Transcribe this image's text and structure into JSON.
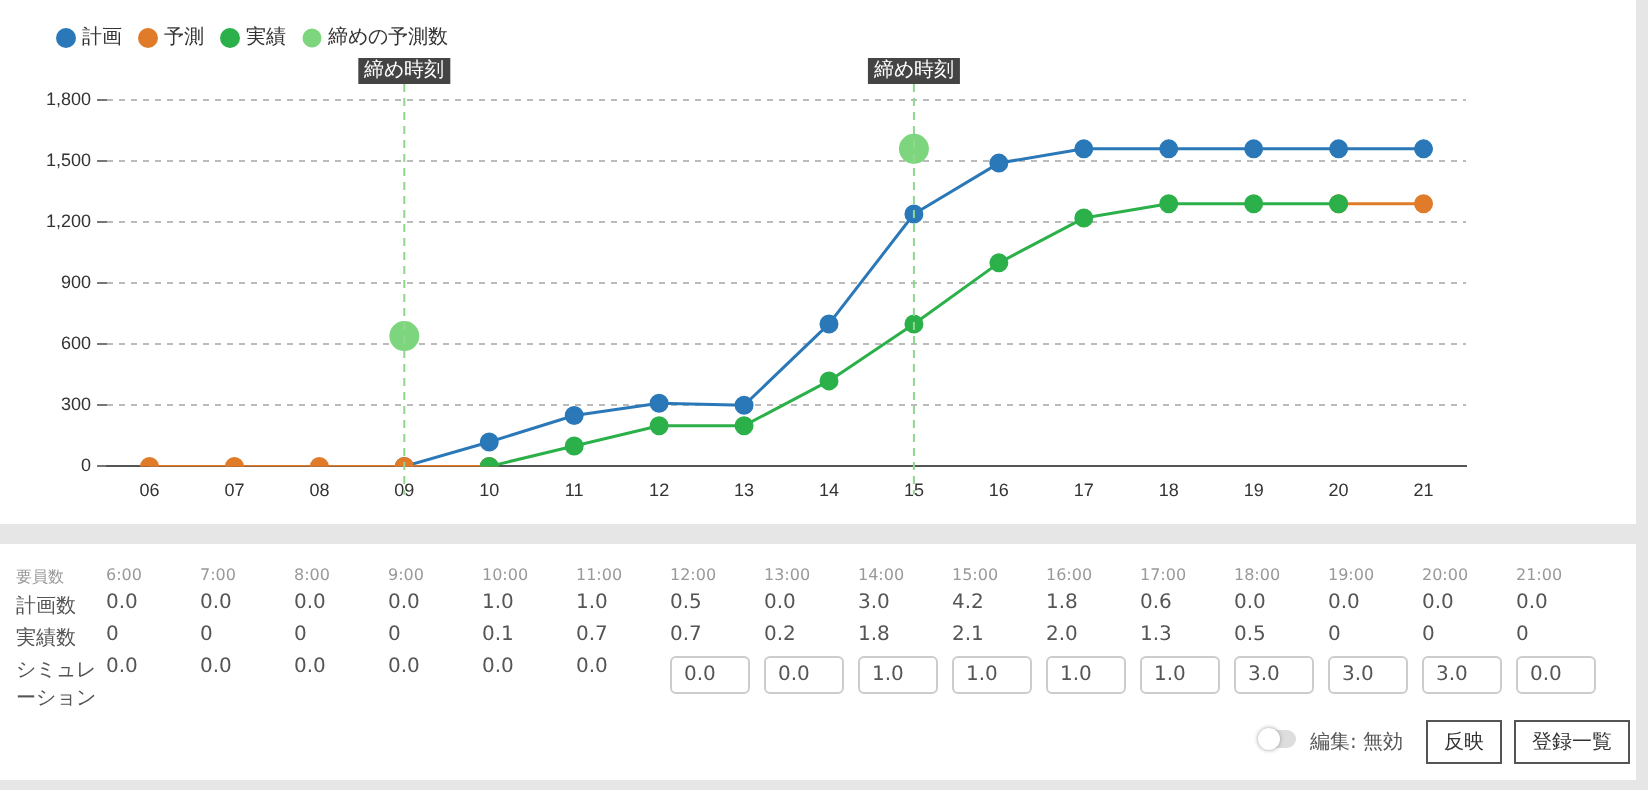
{
  "chart_data": [
    {
      "type": "line",
      "categories": [
        "06",
        "07",
        "08",
        "09",
        "10",
        "11",
        "12",
        "13",
        "14",
        "15",
        "16",
        "17",
        "18",
        "19",
        "20",
        "21"
      ],
      "series": [
        {
          "name": "計画",
          "type": "line",
          "color": "#2a78b8",
          "values": [
            null,
            null,
            null,
            0,
            120,
            250,
            310,
            300,
            700,
            1240,
            1490,
            1560,
            1560,
            1560,
            1560,
            1560
          ]
        },
        {
          "name": "予測",
          "type": "line",
          "color": "#e07b2a",
          "values": [
            0,
            0,
            0,
            0,
            0,
            null,
            null,
            null,
            null,
            null,
            null,
            null,
            null,
            null,
            1290,
            1290
          ]
        },
        {
          "name": "実績",
          "type": "line",
          "color": "#2bb04a",
          "values": [
            null,
            null,
            null,
            null,
            0,
            100,
            200,
            200,
            420,
            700,
            1000,
            1220,
            1290,
            1290,
            1290,
            null
          ]
        },
        {
          "name": "締めの予測数",
          "type": "scatter",
          "color": "#7dd67d",
          "x": [
            "09",
            "15"
          ],
          "values": [
            640,
            1560
          ]
        }
      ],
      "ylim": [
        0,
        1800
      ],
      "yticks": [
        0,
        300,
        600,
        900,
        {
          "value": 1200,
          "label": "1,200"
        },
        {
          "value": 1500,
          "label": "1,500"
        },
        {
          "value": 1800,
          "label": "1,800"
        }
      ],
      "grid": "y",
      "legend": "top left",
      "marker": "circle",
      "ref_lines": [
        {
          "axis": "x",
          "value": "09",
          "label": "締め時刻",
          "color": "#8fd68f",
          "line_style": "dashed"
        },
        {
          "axis": "x",
          "value": "15",
          "label": "締め時刻",
          "color": "#8fd68f",
          "line_style": "dashed"
        }
      ]
    },
    {
      "type": "heatmap",
      "categories": [
        "6:00",
        "7:00",
        "8:00",
        "9:00",
        "10:00",
        "11:00",
        "12:00",
        "13:00",
        "14:00",
        "15:00",
        "16:00",
        "17:00",
        "18:00",
        "19:00",
        "20:00",
        "21:00"
      ],
      "y_categories": [
        "計画数",
        "実績数",
        "シミュレーション"
      ],
      "cells": [
        [
          0,
          0,
          0,
          0,
          1,
          1,
          0.5,
          0,
          3,
          4.2,
          1.8,
          0.6,
          0,
          0,
          0,
          0
        ],
        [
          0,
          0,
          0,
          0,
          0.1,
          0.7,
          0.7,
          0.2,
          1.8,
          2.1,
          2,
          1.3,
          0.5,
          0,
          0,
          0
        ],
        [
          0,
          0,
          0,
          0,
          0,
          0,
          0,
          0,
          1,
          1,
          1,
          1,
          3,
          3,
          3,
          0
        ]
      ],
      "cell_labels": [
        [
          "0.0",
          "0.0",
          "0.0",
          "0.0",
          "1.0",
          "1.0",
          "0.5",
          "0.0",
          "3.0",
          "4.2",
          "1.8",
          "0.6",
          "0.0",
          "0.0",
          "0.0",
          "0.0"
        ],
        [
          "0",
          "0",
          "0",
          "0",
          "0.1",
          "0.7",
          "0.7",
          "0.2",
          "1.8",
          "2.1",
          "2.0",
          "1.3",
          "0.5",
          "0",
          "0",
          "0"
        ],
        [
          "0.0",
          "0.0",
          "0.0",
          "0.0",
          "0.0",
          "0.0",
          "0.0",
          "0.0",
          "1.0",
          "1.0",
          "1.0",
          "1.0",
          "3.0",
          "3.0",
          "3.0",
          "0.0"
        ]
      ],
      "annotations": [
        "要員数",
        "編集: 無効",
        "反映",
        "登録一覧"
      ]
    }
  ]
}
